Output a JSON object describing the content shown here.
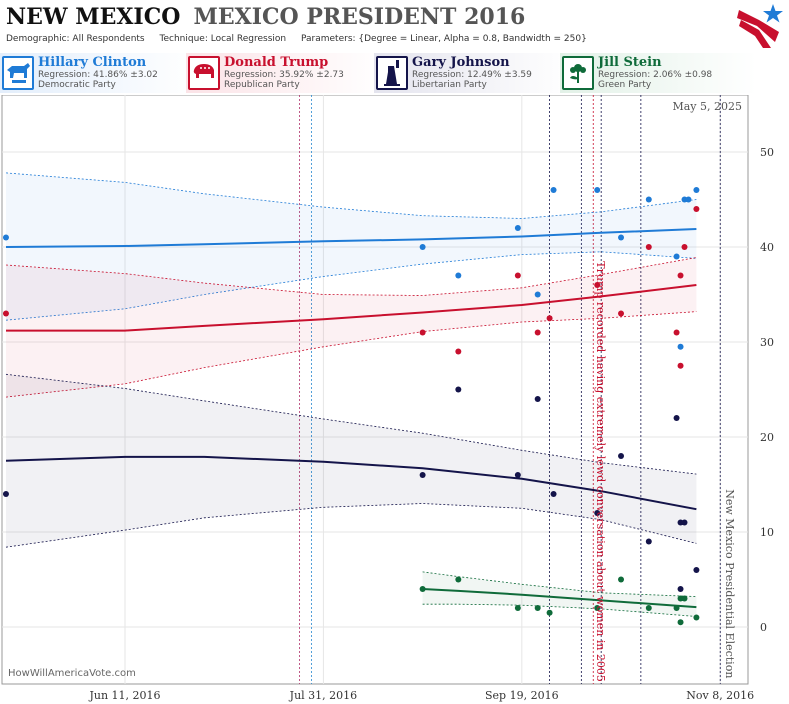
{
  "header": {
    "title": "NEW MEXICO",
    "subtitle": "MEXICO PRESIDENT 2016",
    "demographic": "Demographic: All Respondents",
    "technique": "Technique: Local Regression",
    "parameters": "Parameters: {Degree = Linear, Alpha = 0.8, Bandwidth = 250}"
  },
  "candidates": [
    {
      "name": "Hillary Clinton",
      "regression": "Regression: 41.86% ±3.02",
      "party": "Democratic Party",
      "color": "#1f7bd6",
      "icon": "donkey-icon"
    },
    {
      "name": "Donald Trump",
      "regression": "Regression: 35.92% ±2.73",
      "party": "Republican Party",
      "color": "#c8102e",
      "icon": "elephant-icon"
    },
    {
      "name": "Gary Johnson",
      "regression": "Regression: 12.49% ±3.59",
      "party": "Libertarian Party",
      "color": "#14144a",
      "icon": "statue-of-liberty-icon"
    },
    {
      "name": "Jill Stein",
      "regression": "Regression: 2.06% ±0.98",
      "party": "Green Party",
      "color": "#0f6b3a",
      "icon": "flower-icon"
    }
  ],
  "chart_data": {
    "type": "scatter",
    "date_label": "May 5, 2025",
    "credit": "HowWillAmericaVote.com",
    "ylim": [
      -6,
      56
    ],
    "xlim": [
      "2016-05-11",
      "2016-11-15"
    ],
    "yticks": [
      0,
      10,
      20,
      30,
      40,
      50
    ],
    "xticks": [
      {
        "date": "2016-06-11",
        "label": "Jun 11, 2016"
      },
      {
        "date": "2016-07-31",
        "label": "Jul 31, 2016"
      },
      {
        "date": "2016-09-19",
        "label": "Sep 19, 2016"
      },
      {
        "date": "2016-11-08",
        "label": "Nov 8, 2016"
      }
    ],
    "grid": true,
    "annotations": [
      {
        "text": "Trump recorded having extremely lewd conversation about women in 2005",
        "date": "2016-10-07",
        "color": "#c8102e"
      },
      {
        "text": "New Mexico Presidential Election",
        "date": "2016-11-08",
        "color": "#555555"
      }
    ],
    "event_lines": [
      {
        "date": "2016-07-25",
        "color": "#b0306a"
      },
      {
        "date": "2016-07-28",
        "color": "#2a8ad0"
      },
      {
        "date": "2016-09-26",
        "color": "#14144a"
      },
      {
        "date": "2016-10-04",
        "color": "#14144a"
      },
      {
        "date": "2016-10-07",
        "color": "#c8102e"
      },
      {
        "date": "2016-10-09",
        "color": "#14144a"
      },
      {
        "date": "2016-10-19",
        "color": "#14144a"
      },
      {
        "date": "2016-11-08",
        "color": "#14144a"
      }
    ],
    "series": [
      {
        "name": "Hillary Clinton",
        "color": "#1f7bd6",
        "points": [
          [
            "2016-05-12",
            41
          ],
          [
            "2016-08-25",
            40
          ],
          [
            "2016-09-03",
            37
          ],
          [
            "2016-09-18",
            42
          ],
          [
            "2016-09-23",
            35
          ],
          [
            "2016-09-27",
            46
          ],
          [
            "2016-10-08",
            46
          ],
          [
            "2016-10-14",
            41
          ],
          [
            "2016-10-21",
            45
          ],
          [
            "2016-10-28",
            39
          ],
          [
            "2016-10-29",
            29.5
          ],
          [
            "2016-10-30",
            45
          ],
          [
            "2016-10-31",
            45
          ],
          [
            "2016-11-02",
            46
          ]
        ],
        "trend": [
          [
            "2016-05-12",
            40.0
          ],
          [
            "2016-06-11",
            40.1
          ],
          [
            "2016-07-01",
            40.3
          ],
          [
            "2016-07-31",
            40.6
          ],
          [
            "2016-08-25",
            40.8
          ],
          [
            "2016-09-19",
            41.1
          ],
          [
            "2016-10-09",
            41.5
          ],
          [
            "2016-11-02",
            41.9
          ]
        ],
        "upper": [
          [
            "2016-05-12",
            47.8
          ],
          [
            "2016-06-11",
            46.8
          ],
          [
            "2016-07-01",
            45.6
          ],
          [
            "2016-07-31",
            44.2
          ],
          [
            "2016-08-25",
            43.3
          ],
          [
            "2016-09-19",
            43.0
          ],
          [
            "2016-10-09",
            43.7
          ],
          [
            "2016-11-02",
            45.0
          ]
        ],
        "lower": [
          [
            "2016-05-12",
            32.3
          ],
          [
            "2016-06-11",
            33.5
          ],
          [
            "2016-07-01",
            35.0
          ],
          [
            "2016-07-31",
            36.9
          ],
          [
            "2016-08-25",
            38.2
          ],
          [
            "2016-09-19",
            39.2
          ],
          [
            "2016-10-09",
            39.5
          ],
          [
            "2016-11-02",
            38.8
          ]
        ]
      },
      {
        "name": "Donald Trump",
        "color": "#c8102e",
        "points": [
          [
            "2016-05-12",
            33
          ],
          [
            "2016-08-25",
            31
          ],
          [
            "2016-09-03",
            29
          ],
          [
            "2016-09-18",
            37
          ],
          [
            "2016-09-23",
            31
          ],
          [
            "2016-09-26",
            32.5
          ],
          [
            "2016-10-08",
            36
          ],
          [
            "2016-10-14",
            33
          ],
          [
            "2016-10-21",
            40
          ],
          [
            "2016-10-28",
            31
          ],
          [
            "2016-10-29",
            37
          ],
          [
            "2016-10-29",
            27.5
          ],
          [
            "2016-10-30",
            40
          ],
          [
            "2016-11-02",
            44
          ]
        ],
        "trend": [
          [
            "2016-05-12",
            31.2
          ],
          [
            "2016-06-11",
            31.2
          ],
          [
            "2016-07-01",
            31.7
          ],
          [
            "2016-07-31",
            32.4
          ],
          [
            "2016-08-25",
            33.1
          ],
          [
            "2016-09-19",
            33.9
          ],
          [
            "2016-10-09",
            34.8
          ],
          [
            "2016-11-02",
            36.0
          ]
        ],
        "upper": [
          [
            "2016-05-12",
            38.1
          ],
          [
            "2016-06-11",
            37.2
          ],
          [
            "2016-07-01",
            36.2
          ],
          [
            "2016-07-31",
            35.0
          ],
          [
            "2016-08-25",
            34.9
          ],
          [
            "2016-09-19",
            35.7
          ],
          [
            "2016-10-09",
            37.1
          ],
          [
            "2016-11-02",
            38.9
          ]
        ],
        "lower": [
          [
            "2016-05-12",
            24.2
          ],
          [
            "2016-06-11",
            25.6
          ],
          [
            "2016-07-01",
            27.3
          ],
          [
            "2016-07-31",
            29.5
          ],
          [
            "2016-08-25",
            31.1
          ],
          [
            "2016-09-19",
            32.1
          ],
          [
            "2016-10-09",
            32.5
          ],
          [
            "2016-11-02",
            33.2
          ]
        ]
      },
      {
        "name": "Gary Johnson",
        "color": "#14144a",
        "points": [
          [
            "2016-05-12",
            14
          ],
          [
            "2016-08-25",
            16
          ],
          [
            "2016-09-03",
            25
          ],
          [
            "2016-09-18",
            16
          ],
          [
            "2016-09-23",
            24
          ],
          [
            "2016-09-27",
            14
          ],
          [
            "2016-10-08",
            12
          ],
          [
            "2016-10-14",
            18
          ],
          [
            "2016-10-21",
            9
          ],
          [
            "2016-10-28",
            22
          ],
          [
            "2016-10-29",
            11
          ],
          [
            "2016-10-30",
            11
          ],
          [
            "2016-10-29",
            4
          ],
          [
            "2016-11-02",
            6
          ]
        ],
        "trend": [
          [
            "2016-05-12",
            17.5
          ],
          [
            "2016-06-11",
            17.9
          ],
          [
            "2016-07-01",
            17.9
          ],
          [
            "2016-07-31",
            17.4
          ],
          [
            "2016-08-25",
            16.7
          ],
          [
            "2016-09-19",
            15.6
          ],
          [
            "2016-10-09",
            14.3
          ],
          [
            "2016-11-02",
            12.4
          ]
        ],
        "upper": [
          [
            "2016-05-12",
            26.6
          ],
          [
            "2016-06-11",
            25.1
          ],
          [
            "2016-07-01",
            23.8
          ],
          [
            "2016-07-31",
            21.9
          ],
          [
            "2016-08-25",
            20.4
          ],
          [
            "2016-09-19",
            18.6
          ],
          [
            "2016-10-09",
            17.3
          ],
          [
            "2016-11-02",
            16.1
          ]
        ],
        "lower": [
          [
            "2016-05-12",
            8.4
          ],
          [
            "2016-06-11",
            10.2
          ],
          [
            "2016-07-01",
            11.5
          ],
          [
            "2016-07-31",
            12.6
          ],
          [
            "2016-08-25",
            13.0
          ],
          [
            "2016-09-19",
            12.5
          ],
          [
            "2016-10-09",
            11.3
          ],
          [
            "2016-11-02",
            8.8
          ]
        ]
      },
      {
        "name": "Jill Stein",
        "color": "#0f6b3a",
        "points": [
          [
            "2016-08-25",
            4
          ],
          [
            "2016-09-03",
            5
          ],
          [
            "2016-09-18",
            2
          ],
          [
            "2016-09-23",
            2
          ],
          [
            "2016-09-26",
            1.5
          ],
          [
            "2016-10-08",
            2
          ],
          [
            "2016-10-14",
            5
          ],
          [
            "2016-10-21",
            2
          ],
          [
            "2016-10-28",
            2
          ],
          [
            "2016-10-29",
            3
          ],
          [
            "2016-10-30",
            3
          ],
          [
            "2016-10-29",
            0.5
          ],
          [
            "2016-11-02",
            1
          ]
        ],
        "trend": [
          [
            "2016-08-25",
            4.0
          ],
          [
            "2016-09-03",
            3.8
          ],
          [
            "2016-09-19",
            3.4
          ],
          [
            "2016-10-09",
            2.8
          ],
          [
            "2016-11-02",
            2.1
          ]
        ],
        "upper": [
          [
            "2016-08-25",
            5.8
          ],
          [
            "2016-09-03",
            5.3
          ],
          [
            "2016-09-19",
            4.5
          ],
          [
            "2016-10-09",
            3.6
          ],
          [
            "2016-11-02",
            3.2
          ]
        ],
        "lower": [
          [
            "2016-08-25",
            2.4
          ],
          [
            "2016-09-03",
            2.4
          ],
          [
            "2016-09-19",
            2.3
          ],
          [
            "2016-10-09",
            1.9
          ],
          [
            "2016-11-02",
            1.1
          ]
        ]
      }
    ]
  }
}
